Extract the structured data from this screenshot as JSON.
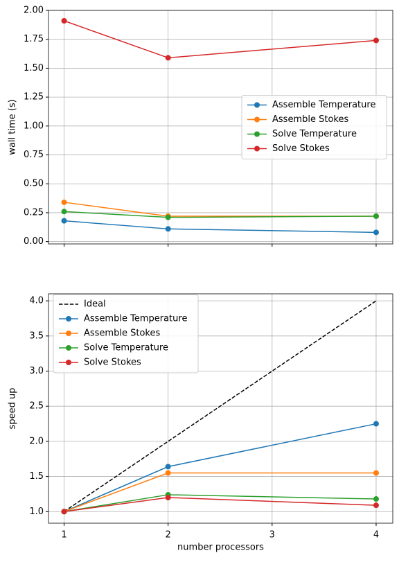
{
  "chart_data": [
    {
      "type": "line",
      "ylabel": "wall time (s)",
      "x": [
        1,
        2,
        4
      ],
      "xlim": [
        0.85,
        4.16
      ],
      "xticks": [
        1,
        2,
        3,
        4
      ],
      "ylim": [
        -0.02,
        2.0
      ],
      "yticks": [
        {
          "value": 0,
          "label": "0.00"
        },
        {
          "value": 0.25,
          "label": "0.25"
        },
        {
          "value": 0.5,
          "label": "0.50"
        },
        {
          "value": 0.75,
          "label": "0.75"
        },
        {
          "value": 1.0,
          "label": "1.00"
        },
        {
          "value": 1.25,
          "label": "1.25"
        },
        {
          "value": 1.5,
          "label": "1.50"
        },
        {
          "value": 1.75,
          "label": "1.75"
        },
        {
          "value": 2.0,
          "label": "2.00"
        }
      ],
      "grid": true,
      "legend": "center right",
      "series": [
        {
          "name": "Assemble Temperature",
          "color": "#1f77b4",
          "values": [
            0.18,
            0.11,
            0.08
          ]
        },
        {
          "name": "Assemble Stokes",
          "color": "#ff7f0e",
          "values": [
            0.34,
            0.22,
            0.22
          ]
        },
        {
          "name": "Solve Temperature",
          "color": "#2ca02c",
          "values": [
            0.26,
            0.21,
            0.22
          ]
        },
        {
          "name": "Solve Stokes",
          "color": "#d62728",
          "values": [
            1.91,
            1.59,
            1.74
          ]
        }
      ]
    },
    {
      "type": "line",
      "ylabel": "speed up",
      "xlabel": "number processors",
      "x": [
        1,
        2,
        4
      ],
      "xlim": [
        0.85,
        4.16
      ],
      "xticks": [
        1,
        2,
        3,
        4
      ],
      "ylim": [
        0.835,
        4.1
      ],
      "yticks": [
        {
          "value": 1,
          "label": "1.0"
        },
        {
          "value": 1.5,
          "label": "1.5"
        },
        {
          "value": 2,
          "label": "2.0"
        },
        {
          "value": 2.5,
          "label": "2.5"
        },
        {
          "value": 3,
          "label": "3.0"
        },
        {
          "value": 3.5,
          "label": "3.5"
        },
        {
          "value": 4,
          "label": "4.0"
        }
      ],
      "grid": true,
      "legend": "upper left",
      "series": [
        {
          "name": "Ideal",
          "color": "#000000",
          "dashed": true,
          "markers": false,
          "values": [
            1,
            2,
            4
          ]
        },
        {
          "name": "Assemble Temperature",
          "color": "#1f77b4",
          "values": [
            1,
            1.64,
            2.25
          ]
        },
        {
          "name": "Assemble Stokes",
          "color": "#ff7f0e",
          "values": [
            1,
            1.55,
            1.55
          ]
        },
        {
          "name": "Solve Temperature",
          "color": "#2ca02c",
          "values": [
            1,
            1.24,
            1.18
          ]
        },
        {
          "name": "Solve Stokes",
          "color": "#d62728",
          "values": [
            1,
            1.2,
            1.09
          ]
        }
      ]
    }
  ]
}
